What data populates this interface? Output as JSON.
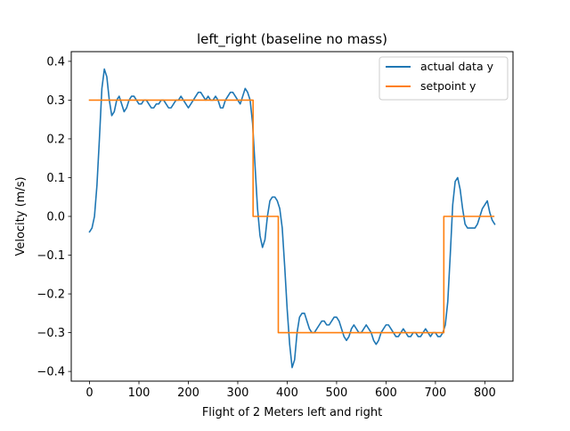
{
  "chart_data": {
    "type": "line",
    "title": "left_right (baseline no mass)",
    "xlabel": "Flight of 2 Meters left and right",
    "ylabel": "Velocity (m/s)",
    "xlim": [
      -37,
      857
    ],
    "ylim": [
      -0.425,
      0.425
    ],
    "xticks": [
      0,
      100,
      200,
      300,
      400,
      500,
      600,
      700,
      800
    ],
    "yticks": [
      -0.4,
      -0.3,
      -0.2,
      -0.1,
      0.0,
      0.1,
      0.2,
      0.3,
      0.4
    ],
    "xtick_labels": [
      "0",
      "100",
      "200",
      "300",
      "400",
      "500",
      "600",
      "700",
      "800"
    ],
    "ytick_labels": [
      "−0.4",
      "−0.3",
      "−0.2",
      "−0.1",
      "0.0",
      "0.1",
      "0.2",
      "0.3",
      "0.4"
    ],
    "grid": false,
    "legend_position": "upper right",
    "series": [
      {
        "name": "actual data y",
        "color": "#1f77b4",
        "x": [
          0,
          5,
          10,
          15,
          20,
          25,
          30,
          35,
          40,
          45,
          50,
          55,
          60,
          65,
          70,
          75,
          80,
          85,
          90,
          95,
          100,
          105,
          110,
          115,
          120,
          125,
          130,
          135,
          140,
          145,
          150,
          155,
          160,
          165,
          170,
          175,
          180,
          185,
          190,
          195,
          200,
          205,
          210,
          215,
          220,
          225,
          230,
          235,
          240,
          245,
          250,
          255,
          260,
          265,
          270,
          275,
          280,
          285,
          290,
          295,
          300,
          305,
          310,
          315,
          320,
          325,
          330,
          335,
          340,
          345,
          350,
          355,
          360,
          365,
          370,
          375,
          380,
          385,
          390,
          395,
          400,
          405,
          410,
          415,
          420,
          425,
          430,
          435,
          440,
          445,
          450,
          455,
          460,
          465,
          470,
          475,
          480,
          485,
          490,
          495,
          500,
          505,
          510,
          515,
          520,
          525,
          530,
          535,
          540,
          545,
          550,
          555,
          560,
          565,
          570,
          575,
          580,
          585,
          590,
          595,
          600,
          605,
          610,
          615,
          620,
          625,
          630,
          635,
          640,
          645,
          650,
          655,
          660,
          665,
          670,
          675,
          680,
          685,
          690,
          695,
          700,
          705,
          710,
          715,
          720,
          725,
          730,
          735,
          740,
          745,
          750,
          755,
          760,
          765,
          770,
          775,
          780,
          785,
          790,
          795,
          800,
          805,
          810,
          815,
          820
        ],
        "y": [
          -0.04,
          -0.03,
          0.0,
          0.08,
          0.2,
          0.33,
          0.38,
          0.36,
          0.3,
          0.26,
          0.27,
          0.3,
          0.31,
          0.29,
          0.27,
          0.28,
          0.3,
          0.31,
          0.31,
          0.3,
          0.29,
          0.29,
          0.3,
          0.3,
          0.29,
          0.28,
          0.28,
          0.29,
          0.29,
          0.3,
          0.3,
          0.29,
          0.28,
          0.28,
          0.29,
          0.3,
          0.3,
          0.31,
          0.3,
          0.29,
          0.28,
          0.29,
          0.3,
          0.31,
          0.32,
          0.32,
          0.31,
          0.3,
          0.31,
          0.3,
          0.3,
          0.31,
          0.3,
          0.28,
          0.28,
          0.3,
          0.31,
          0.32,
          0.32,
          0.31,
          0.3,
          0.29,
          0.31,
          0.33,
          0.32,
          0.3,
          0.24,
          0.13,
          0.02,
          -0.05,
          -0.08,
          -0.06,
          0.0,
          0.04,
          0.05,
          0.05,
          0.04,
          0.02,
          -0.03,
          -0.13,
          -0.24,
          -0.33,
          -0.39,
          -0.37,
          -0.3,
          -0.26,
          -0.25,
          -0.25,
          -0.27,
          -0.29,
          -0.3,
          -0.3,
          -0.29,
          -0.28,
          -0.27,
          -0.27,
          -0.28,
          -0.28,
          -0.27,
          -0.26,
          -0.26,
          -0.27,
          -0.29,
          -0.31,
          -0.32,
          -0.31,
          -0.29,
          -0.28,
          -0.29,
          -0.3,
          -0.3,
          -0.29,
          -0.28,
          -0.29,
          -0.3,
          -0.32,
          -0.33,
          -0.32,
          -0.3,
          -0.29,
          -0.28,
          -0.28,
          -0.29,
          -0.3,
          -0.31,
          -0.31,
          -0.3,
          -0.29,
          -0.3,
          -0.31,
          -0.31,
          -0.3,
          -0.3,
          -0.31,
          -0.31,
          -0.3,
          -0.29,
          -0.3,
          -0.31,
          -0.3,
          -0.3,
          -0.31,
          -0.31,
          -0.3,
          -0.28,
          -0.22,
          -0.1,
          0.03,
          0.09,
          0.1,
          0.07,
          0.02,
          -0.02,
          -0.03,
          -0.03,
          -0.03,
          -0.03,
          -0.02,
          0.0,
          0.02,
          0.03,
          0.04,
          0.01,
          -0.01,
          -0.02
        ],
        "label_shown_in_legend": true
      },
      {
        "name": "setpoint y",
        "color": "#ff7f0e",
        "x": [
          0,
          331,
          331,
          382,
          382,
          717,
          717,
          818
        ],
        "y": [
          0.3,
          0.3,
          0.0,
          0.0,
          -0.3,
          -0.3,
          0.0,
          0.0
        ],
        "label_shown_in_legend": true
      }
    ]
  }
}
